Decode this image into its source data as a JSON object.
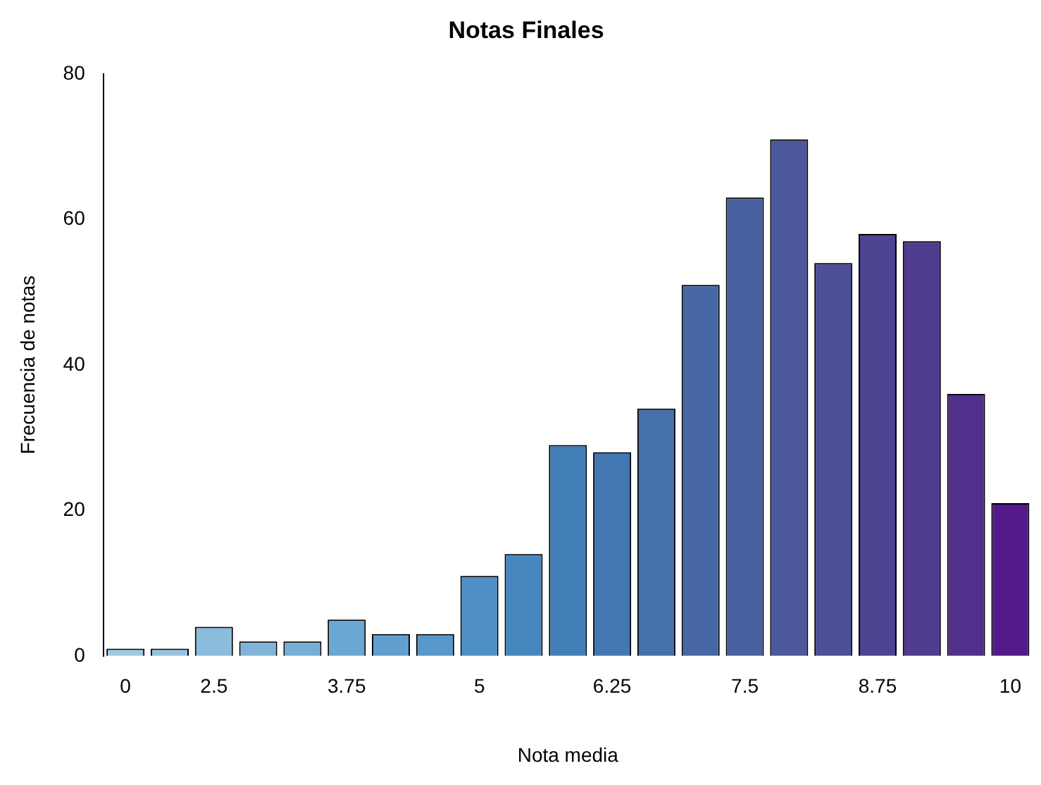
{
  "chart_data": {
    "type": "bar",
    "title": "Notas Finales",
    "xlabel": "Nota media",
    "ylabel": "Frecuencia de notas",
    "categories": [
      "0",
      null,
      "2.5",
      null,
      null,
      "3.75",
      null,
      null,
      "5",
      null,
      null,
      "6.25",
      null,
      null,
      "7.5",
      null,
      null,
      "8.75",
      null,
      null,
      "10"
    ],
    "values": [
      1,
      1,
      4,
      2,
      2,
      5,
      3,
      3,
      11,
      14,
      29,
      28,
      34,
      51,
      63,
      71,
      54,
      58,
      57,
      36,
      21
    ],
    "colors": [
      "#9ecae1",
      "#94c3df",
      "#8abcdc",
      "#80b5d9",
      "#76aed6",
      "#6ca6d2",
      "#629fce",
      "#5897ca",
      "#4e8fc5",
      "#4687c0",
      "#427fb8",
      "#4377b2",
      "#4570ab",
      "#4768a5",
      "#49609f",
      "#4b589a",
      "#4c4f96",
      "#4d4592",
      "#4f3b8f",
      "#51308c",
      "#54198a"
    ],
    "ylim": [
      0,
      80
    ],
    "yticks": [
      0,
      20,
      40,
      60,
      80
    ],
    "grid": false,
    "legend": false
  }
}
